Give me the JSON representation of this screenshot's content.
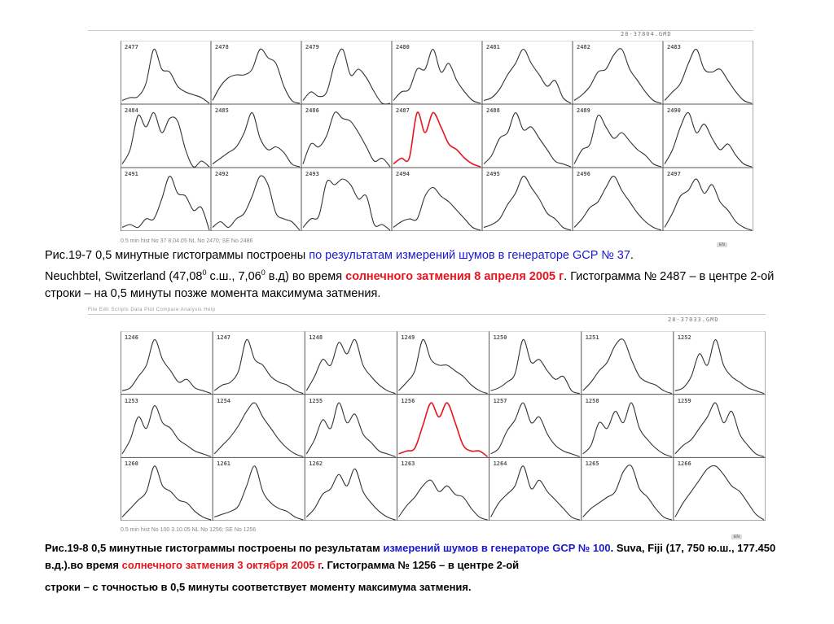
{
  "figure1": {
    "file_label": "28-37804.GMD",
    "footer": "0.5 min hist No 37 8.04.05 NL No 2470; SE No 2486",
    "badge": "EN",
    "panels": [
      {
        "id": "2477",
        "values": [
          0.05,
          0.1,
          0.12,
          0.35,
          0.95,
          0.6,
          0.55,
          0.3,
          0.2,
          0.15,
          0.1,
          0.0
        ]
      },
      {
        "id": "2478",
        "values": [
          0.05,
          0.3,
          0.45,
          0.5,
          0.5,
          0.6,
          0.95,
          0.8,
          0.7,
          0.3,
          0.05,
          0.0
        ]
      },
      {
        "id": "2479",
        "values": [
          0.05,
          0.2,
          0.12,
          0.2,
          0.7,
          0.95,
          0.5,
          0.6,
          0.45,
          0.2,
          0.0,
          0.0
        ]
      },
      {
        "id": "2480",
        "values": [
          0.05,
          0.2,
          0.25,
          0.6,
          0.6,
          0.95,
          0.55,
          0.7,
          0.4,
          0.2,
          0.05,
          0.0
        ]
      },
      {
        "id": "2481",
        "values": [
          0.05,
          0.1,
          0.25,
          0.5,
          0.7,
          0.95,
          0.7,
          0.5,
          0.3,
          0.4,
          0.1,
          0.0
        ]
      },
      {
        "id": "2482",
        "values": [
          0.05,
          0.15,
          0.3,
          0.55,
          0.6,
          0.85,
          0.95,
          0.6,
          0.4,
          0.2,
          0.05,
          0.0
        ]
      },
      {
        "id": "2483",
        "values": [
          0.05,
          0.2,
          0.35,
          0.7,
          0.95,
          0.6,
          0.55,
          0.6,
          0.4,
          0.2,
          0.05,
          0.0
        ]
      },
      {
        "id": "2484",
        "values": [
          0.05,
          0.3,
          0.9,
          0.7,
          0.95,
          0.6,
          0.85,
          0.8,
          0.3,
          0.0,
          0.1,
          0.0
        ]
      },
      {
        "id": "2485",
        "values": [
          0.05,
          0.15,
          0.25,
          0.35,
          0.6,
          0.95,
          0.5,
          0.3,
          0.35,
          0.25,
          0.05,
          0.0
        ]
      },
      {
        "id": "2486",
        "values": [
          0.05,
          0.4,
          0.35,
          0.55,
          0.95,
          0.85,
          0.8,
          0.6,
          0.35,
          0.1,
          0.15,
          0.0
        ]
      },
      {
        "id": "2487",
        "values": [
          0.05,
          0.15,
          0.15,
          0.95,
          0.6,
          0.95,
          0.7,
          0.4,
          0.3,
          0.15,
          0.05,
          0.0
        ],
        "highlight": true
      },
      {
        "id": "2488",
        "values": [
          0.05,
          0.2,
          0.5,
          0.6,
          0.95,
          0.65,
          0.7,
          0.5,
          0.3,
          0.1,
          0.05,
          0.0
        ]
      },
      {
        "id": "2489",
        "values": [
          0.05,
          0.3,
          0.4,
          0.9,
          0.7,
          0.5,
          0.6,
          0.45,
          0.3,
          0.2,
          0.05,
          0.0
        ]
      },
      {
        "id": "2490",
        "values": [
          0.05,
          0.3,
          0.7,
          0.95,
          0.6,
          0.75,
          0.5,
          0.3,
          0.4,
          0.2,
          0.05,
          0.0
        ]
      },
      {
        "id": "2491",
        "values": [
          0.05,
          0.1,
          0.05,
          0.2,
          0.2,
          0.55,
          0.95,
          0.65,
          0.6,
          0.35,
          0.4,
          0.0
        ]
      },
      {
        "id": "2492",
        "values": [
          0.05,
          0.15,
          0.05,
          0.2,
          0.3,
          0.6,
          0.95,
          0.8,
          0.3,
          0.2,
          0.15,
          0.0
        ]
      },
      {
        "id": "2493",
        "values": [
          0.05,
          0.2,
          0.25,
          0.85,
          0.8,
          0.9,
          0.8,
          0.55,
          0.6,
          0.1,
          0.1,
          0.0
        ]
      },
      {
        "id": "2494",
        "values": [
          0.05,
          0.15,
          0.2,
          0.2,
          0.6,
          0.75,
          0.6,
          0.5,
          0.35,
          0.2,
          0.05,
          0.0
        ]
      },
      {
        "id": "2495",
        "values": [
          0.05,
          0.1,
          0.2,
          0.45,
          0.65,
          0.95,
          0.75,
          0.55,
          0.3,
          0.2,
          0.05,
          0.0
        ]
      },
      {
        "id": "2496",
        "values": [
          0.05,
          0.2,
          0.4,
          0.5,
          0.75,
          0.95,
          0.7,
          0.5,
          0.3,
          0.15,
          0.05,
          0.0
        ]
      },
      {
        "id": "2497",
        "values": [
          0.05,
          0.3,
          0.6,
          0.7,
          0.9,
          0.65,
          0.8,
          0.5,
          0.35,
          0.15,
          0.05,
          0.0
        ]
      }
    ],
    "caption": {
      "p1": "Рис.19-7   0,5 минутные гистограммы построены ",
      "p2": "по результатам измерений шумов в генераторе GCP № 37",
      "p3": ".",
      "p4": "Neuchbtel, Switzerland (47,08",
      "sup1": "0",
      "p5": " с.ш., 7,06",
      "sup2": "0",
      "p6": " в.д) во время ",
      "p7": "солнечного затмения 8 апреля 2005 г",
      "p8": ".  Гистограмма  № 2487 – в центре 2-ой строки – на 0,5  минуты позже момента максимума затмения."
    }
  },
  "figure2": {
    "menu": "File  Edit  Scripts  Data  Plot  Compare  Analysis  Help",
    "file_label": "28-37033.GMD",
    "footer": "0.5 min hist No 100 3.10.05 NL No 1256; SE No 1256",
    "badge": "EN",
    "panels": [
      {
        "id": "1246",
        "values": [
          0.05,
          0.1,
          0.3,
          0.5,
          0.95,
          0.6,
          0.4,
          0.2,
          0.25,
          0.1,
          0.05,
          0.0
        ]
      },
      {
        "id": "1247",
        "values": [
          0.05,
          0.15,
          0.2,
          0.4,
          0.95,
          0.6,
          0.5,
          0.3,
          0.2,
          0.15,
          0.05,
          0.0
        ]
      },
      {
        "id": "1248",
        "values": [
          0.05,
          0.3,
          0.6,
          0.5,
          0.9,
          0.7,
          0.95,
          0.5,
          0.3,
          0.15,
          0.05,
          0.0
        ]
      },
      {
        "id": "1249",
        "values": [
          0.05,
          0.2,
          0.4,
          0.95,
          0.6,
          0.5,
          0.5,
          0.4,
          0.3,
          0.15,
          0.05,
          0.0
        ]
      },
      {
        "id": "1250",
        "values": [
          0.05,
          0.1,
          0.2,
          0.35,
          0.95,
          0.55,
          0.6,
          0.4,
          0.25,
          0.3,
          0.05,
          0.0
        ]
      },
      {
        "id": "1251",
        "values": [
          0.05,
          0.2,
          0.4,
          0.55,
          0.85,
          0.95,
          0.6,
          0.3,
          0.2,
          0.15,
          0.05,
          0.0
        ]
      },
      {
        "id": "1252",
        "values": [
          0.05,
          0.1,
          0.3,
          0.7,
          0.5,
          0.95,
          0.5,
          0.3,
          0.2,
          0.1,
          0.05,
          0.0
        ]
      },
      {
        "id": "1253",
        "values": [
          0.05,
          0.3,
          0.7,
          0.5,
          0.9,
          0.6,
          0.5,
          0.3,
          0.2,
          0.1,
          0.05,
          0.0
        ]
      },
      {
        "id": "1254",
        "values": [
          0.05,
          0.2,
          0.35,
          0.55,
          0.8,
          0.95,
          0.7,
          0.5,
          0.3,
          0.15,
          0.05,
          0.0
        ]
      },
      {
        "id": "1255",
        "values": [
          0.05,
          0.3,
          0.65,
          0.5,
          0.95,
          0.6,
          0.75,
          0.4,
          0.25,
          0.1,
          0.05,
          0.0
        ]
      },
      {
        "id": "1256",
        "values": [
          0.05,
          0.1,
          0.15,
          0.55,
          0.95,
          0.7,
          0.95,
          0.6,
          0.2,
          0.1,
          0.1,
          0.0
        ],
        "highlight": true
      },
      {
        "id": "1257",
        "values": [
          0.05,
          0.15,
          0.45,
          0.65,
          0.95,
          0.6,
          0.7,
          0.4,
          0.2,
          0.1,
          0.05,
          0.0
        ]
      },
      {
        "id": "1258",
        "values": [
          0.05,
          0.2,
          0.6,
          0.5,
          0.8,
          0.6,
          0.95,
          0.5,
          0.3,
          0.15,
          0.05,
          0.0
        ]
      },
      {
        "id": "1259",
        "values": [
          0.05,
          0.2,
          0.3,
          0.5,
          0.7,
          0.95,
          0.6,
          0.8,
          0.4,
          0.2,
          0.05,
          0.0
        ]
      },
      {
        "id": "1260",
        "values": [
          0.05,
          0.2,
          0.35,
          0.5,
          0.95,
          0.6,
          0.5,
          0.35,
          0.3,
          0.15,
          0.05,
          0.0
        ]
      },
      {
        "id": "1261",
        "values": [
          0.05,
          0.1,
          0.15,
          0.25,
          0.6,
          0.95,
          0.5,
          0.3,
          0.2,
          0.15,
          0.05,
          0.0
        ]
      },
      {
        "id": "1262",
        "values": [
          0.05,
          0.2,
          0.45,
          0.55,
          0.8,
          0.6,
          0.9,
          0.5,
          0.3,
          0.15,
          0.05,
          0.0
        ]
      },
      {
        "id": "1263",
        "values": [
          0.05,
          0.25,
          0.4,
          0.6,
          0.7,
          0.5,
          0.6,
          0.45,
          0.4,
          0.2,
          0.05,
          0.0
        ]
      },
      {
        "id": "1264",
        "values": [
          0.05,
          0.3,
          0.45,
          0.6,
          0.95,
          0.55,
          0.7,
          0.5,
          0.35,
          0.2,
          0.05,
          0.0
        ]
      },
      {
        "id": "1265",
        "values": [
          0.05,
          0.2,
          0.3,
          0.4,
          0.5,
          0.85,
          0.95,
          0.55,
          0.4,
          0.2,
          0.05,
          0.0
        ]
      },
      {
        "id": "1266",
        "values": [
          0.05,
          0.3,
          0.5,
          0.7,
          0.9,
          0.95,
          0.8,
          0.6,
          0.5,
          0.3,
          0.1,
          0.0
        ]
      }
    ],
    "caption": {
      "p1": "Рис.19-8   0,5 минутные гистограммы построены по результатам ",
      "p2": "измерений шумов в генераторе GCP № 100",
      "p3": ". Suva, Fiji (17, 750 ю.ш., 177.450 в.д.).во время ",
      "p4": "солнечного затмения 3 октября 2005 г",
      "p5": ".  Гистограмма  № 1256 – в центре 2-ой",
      "p6": "строки – с точностью в 0,5  минуты соответствует моменту максимума затмения."
    }
  },
  "colors": {
    "line": "#333333",
    "highlight": "#e8141e",
    "grid": "#555555"
  }
}
